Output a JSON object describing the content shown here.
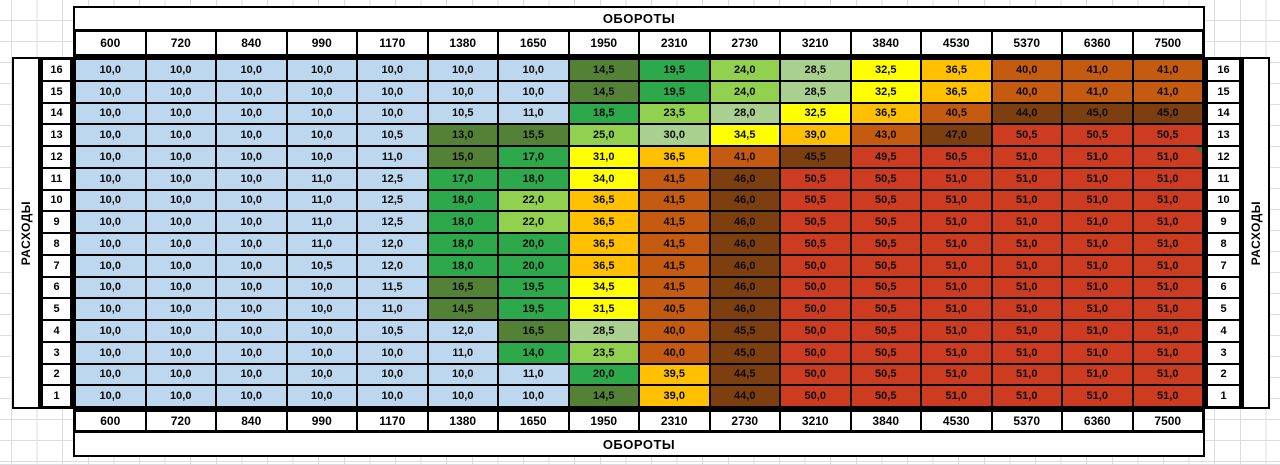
{
  "chart_data": {
    "type": "heatmap",
    "title_top": "ОБОРОТЫ",
    "title_bottom": "ОБОРОТЫ",
    "ylabel_left": "РАСХОДЫ",
    "ylabel_right": "РАСХОДЫ",
    "columns": [
      "600",
      "720",
      "840",
      "990",
      "1170",
      "1380",
      "1650",
      "1950",
      "2310",
      "2730",
      "3210",
      "3840",
      "4530",
      "5370",
      "6360",
      "7500"
    ],
    "rows": [
      "16",
      "15",
      "14",
      "13",
      "12",
      "11",
      "10",
      "9",
      "8",
      "7",
      "6",
      "5",
      "4",
      "3",
      "2",
      "1"
    ],
    "values": [
      [
        "10,0",
        "10,0",
        "10,0",
        "10,0",
        "10,0",
        "10,0",
        "10,0",
        "14,5",
        "19,5",
        "24,0",
        "28,5",
        "32,5",
        "36,5",
        "40,0",
        "41,0",
        "41,0"
      ],
      [
        "10,0",
        "10,0",
        "10,0",
        "10,0",
        "10,0",
        "10,0",
        "10,0",
        "14,5",
        "19,5",
        "24,0",
        "28,5",
        "32,5",
        "36,5",
        "40,0",
        "41,0",
        "41,0"
      ],
      [
        "10,0",
        "10,0",
        "10,0",
        "10,0",
        "10,0",
        "10,5",
        "11,0",
        "18,5",
        "23,5",
        "28,0",
        "32,5",
        "36,5",
        "40,5",
        "44,0",
        "45,0",
        "45,0"
      ],
      [
        "10,0",
        "10,0",
        "10,0",
        "10,0",
        "10,5",
        "13,0",
        "15,5",
        "25,0",
        "30,0",
        "34,5",
        "39,0",
        "43,0",
        "47,0",
        "50,5",
        "50,5",
        "50,5"
      ],
      [
        "10,0",
        "10,0",
        "10,0",
        "10,0",
        "11,0",
        "15,0",
        "17,0",
        "31,0",
        "36,5",
        "41,0",
        "45,5",
        "49,5",
        "50,5",
        "51,0",
        "51,0",
        "51,0"
      ],
      [
        "10,0",
        "10,0",
        "10,0",
        "11,0",
        "12,5",
        "17,0",
        "18,0",
        "34,0",
        "41,5",
        "46,0",
        "50,5",
        "50,5",
        "51,0",
        "51,0",
        "51,0",
        "51,0"
      ],
      [
        "10,0",
        "10,0",
        "10,0",
        "11,0",
        "12,5",
        "18,0",
        "22,0",
        "36,5",
        "41,5",
        "46,0",
        "50,5",
        "50,5",
        "51,0",
        "51,0",
        "51,0",
        "51,0"
      ],
      [
        "10,0",
        "10,0",
        "10,0",
        "11,0",
        "12,5",
        "18,0",
        "22,0",
        "36,5",
        "41,5",
        "46,0",
        "50,5",
        "50,5",
        "51,0",
        "51,0",
        "51,0",
        "51,0"
      ],
      [
        "10,0",
        "10,0",
        "10,0",
        "11,0",
        "12,0",
        "18,0",
        "20,0",
        "36,5",
        "41,5",
        "46,0",
        "50,5",
        "50,5",
        "51,0",
        "51,0",
        "51,0",
        "51,0"
      ],
      [
        "10,0",
        "10,0",
        "10,0",
        "10,5",
        "12,0",
        "18,0",
        "20,0",
        "36,5",
        "41,5",
        "46,0",
        "50,0",
        "50,5",
        "51,0",
        "51,0",
        "51,0",
        "51,0"
      ],
      [
        "10,0",
        "10,0",
        "10,0",
        "10,0",
        "11,5",
        "16,5",
        "19,5",
        "34,5",
        "41,5",
        "46,0",
        "50,0",
        "50,5",
        "51,0",
        "51,0",
        "51,0",
        "51,0"
      ],
      [
        "10,0",
        "10,0",
        "10,0",
        "10,0",
        "11,0",
        "14,5",
        "19,5",
        "31,5",
        "40,5",
        "46,0",
        "50,0",
        "50,5",
        "51,0",
        "51,0",
        "51,0",
        "51,0"
      ],
      [
        "10,0",
        "10,0",
        "10,0",
        "10,0",
        "10,5",
        "12,0",
        "16,5",
        "28,5",
        "40,0",
        "45,5",
        "50,0",
        "50,5",
        "51,0",
        "51,0",
        "51,0",
        "51,0"
      ],
      [
        "10,0",
        "10,0",
        "10,0",
        "10,0",
        "10,0",
        "11,0",
        "14,0",
        "23,5",
        "40,0",
        "45,0",
        "50,0",
        "50,5",
        "51,0",
        "51,0",
        "51,0",
        "51,0"
      ],
      [
        "10,0",
        "10,0",
        "10,0",
        "10,0",
        "10,0",
        "10,0",
        "11,0",
        "20,0",
        "39,5",
        "44,5",
        "50,0",
        "50,5",
        "51,0",
        "51,0",
        "51,0",
        "51,0"
      ],
      [
        "10,0",
        "10,0",
        "10,0",
        "10,0",
        "10,0",
        "10,0",
        "10,0",
        "14,5",
        "39,0",
        "44,0",
        "50,0",
        "50,5",
        "51,0",
        "51,0",
        "51,0",
        "51,0"
      ]
    ],
    "cell_colors": [
      [
        "b",
        "b",
        "b",
        "b",
        "b",
        "b",
        "b",
        "dg",
        "g",
        "lg",
        "pg",
        "y",
        "am",
        "or",
        "or",
        "or"
      ],
      [
        "b",
        "b",
        "b",
        "b",
        "b",
        "b",
        "b",
        "dg",
        "g",
        "lg",
        "pg",
        "y",
        "am",
        "or",
        "or",
        "or"
      ],
      [
        "b",
        "b",
        "b",
        "b",
        "b",
        "b",
        "b",
        "g",
        "lg",
        "pg",
        "y",
        "am",
        "or",
        "br",
        "br",
        "br"
      ],
      [
        "b",
        "b",
        "b",
        "b",
        "b",
        "dg",
        "dg",
        "lg",
        "pg",
        "y",
        "am",
        "or",
        "br",
        "r",
        "r",
        "r"
      ],
      [
        "b",
        "b",
        "b",
        "b",
        "b",
        "dg",
        "g",
        "y",
        "am",
        "or",
        "br",
        "r",
        "r",
        "r",
        "r",
        "r"
      ],
      [
        "b",
        "b",
        "b",
        "b",
        "b",
        "g",
        "g",
        "y",
        "or",
        "br",
        "r",
        "r",
        "r",
        "r",
        "r",
        "r"
      ],
      [
        "b",
        "b",
        "b",
        "b",
        "b",
        "g",
        "lg",
        "am",
        "or",
        "br",
        "r",
        "r",
        "r",
        "r",
        "r",
        "r"
      ],
      [
        "b",
        "b",
        "b",
        "b",
        "b",
        "g",
        "lg",
        "am",
        "or",
        "br",
        "r",
        "r",
        "r",
        "r",
        "r",
        "r"
      ],
      [
        "b",
        "b",
        "b",
        "b",
        "b",
        "g",
        "g",
        "am",
        "or",
        "br",
        "r",
        "r",
        "r",
        "r",
        "r",
        "r"
      ],
      [
        "b",
        "b",
        "b",
        "b",
        "b",
        "g",
        "g",
        "am",
        "or",
        "br",
        "r",
        "r",
        "r",
        "r",
        "r",
        "r"
      ],
      [
        "b",
        "b",
        "b",
        "b",
        "b",
        "dg",
        "g",
        "y",
        "or",
        "br",
        "r",
        "r",
        "r",
        "r",
        "r",
        "r"
      ],
      [
        "b",
        "b",
        "b",
        "b",
        "b",
        "dg",
        "g",
        "y",
        "or",
        "br",
        "r",
        "r",
        "r",
        "r",
        "r",
        "r"
      ],
      [
        "b",
        "b",
        "b",
        "b",
        "b",
        "b",
        "dg",
        "pg",
        "or",
        "br",
        "r",
        "r",
        "r",
        "r",
        "r",
        "r"
      ],
      [
        "b",
        "b",
        "b",
        "b",
        "b",
        "b",
        "g",
        "lg",
        "or",
        "br",
        "r",
        "r",
        "r",
        "r",
        "r",
        "r"
      ],
      [
        "b",
        "b",
        "b",
        "b",
        "b",
        "b",
        "b",
        "g",
        "am",
        "br",
        "r",
        "r",
        "r",
        "r",
        "r",
        "r"
      ],
      [
        "b",
        "b",
        "b",
        "b",
        "b",
        "b",
        "b",
        "dg",
        "am",
        "br",
        "r",
        "r",
        "r",
        "r",
        "r",
        "r"
      ]
    ],
    "palette": {
      "b": "#BDD7EE",
      "dg": "#538135",
      "g": "#2DA84A",
      "lg": "#92D050",
      "pg": "#A9D08E",
      "y": "#FFFF00",
      "am": "#FFC000",
      "or": "#C55A11",
      "br": "#7D3E10",
      "r": "#CD3C21"
    },
    "comment_marker": {
      "row_label": "12",
      "column_label": "7500",
      "color": "#2E7D32"
    },
    "layout_hints": {
      "grid": "excel-gridlines",
      "row_axis_side": "both",
      "column_axis_side": "both"
    }
  }
}
